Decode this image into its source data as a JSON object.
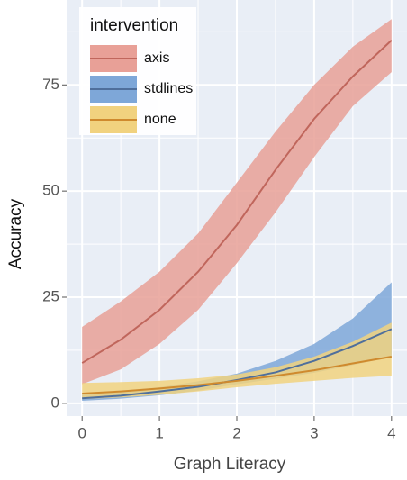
{
  "chart_data": {
    "type": "ribbon-line",
    "x_label": "Graph Literacy",
    "y_label": "Accuracy",
    "x": [
      0,
      0.5,
      1,
      1.5,
      2,
      2.5,
      3,
      3.5,
      4
    ],
    "series": [
      {
        "name": "axis",
        "color": "#c0665c",
        "fill": "#e8a097",
        "values": [
          9.5,
          15,
          22,
          31,
          42,
          55,
          67,
          77,
          85.5
        ],
        "lower": [
          4.5,
          8,
          14,
          22,
          33,
          45,
          58,
          70,
          78
        ],
        "upper": [
          18,
          24,
          31,
          40,
          52,
          64,
          75,
          84,
          90.5
        ]
      },
      {
        "name": "stdlines",
        "color": "#4f6f9c",
        "fill": "#7ea7d8",
        "values": [
          1.2,
          1.8,
          2.8,
          3.9,
          5.5,
          7.3,
          10,
          13.5,
          17.5
        ],
        "lower": [
          0.6,
          1.1,
          1.9,
          3,
          4.5,
          5.8,
          7.2,
          9,
          11
        ],
        "upper": [
          2.2,
          2.9,
          3.8,
          5.2,
          7,
          10,
          14,
          20,
          28.5
        ]
      },
      {
        "name": "none",
        "color": "#cf8a2e",
        "fill": "#f1d27f",
        "values": [
          2.3,
          2.8,
          3.5,
          4.3,
          5.3,
          6.5,
          7.8,
          9.4,
          11
        ],
        "lower": [
          1,
          1.4,
          2,
          2.8,
          3.8,
          4.6,
          5.3,
          6,
          6.5
        ],
        "upper": [
          4.8,
          5,
          5.3,
          5.9,
          6.8,
          8.5,
          11,
          14.5,
          19
        ]
      }
    ],
    "legend_title": "intervention",
    "legend_position": "top-left",
    "xlim": [
      -0.2,
      4.2
    ],
    "ylim": [
      -3,
      95
    ],
    "xticks": [
      0,
      1,
      2,
      3,
      4
    ],
    "yticks": [
      0,
      25,
      50,
      75
    ],
    "x_minor_grid": [
      0.5,
      1.5,
      2.5,
      3.5
    ],
    "y_minor_grid": [
      12.5,
      37.5,
      62.5,
      87.5
    ],
    "grid": true
  }
}
